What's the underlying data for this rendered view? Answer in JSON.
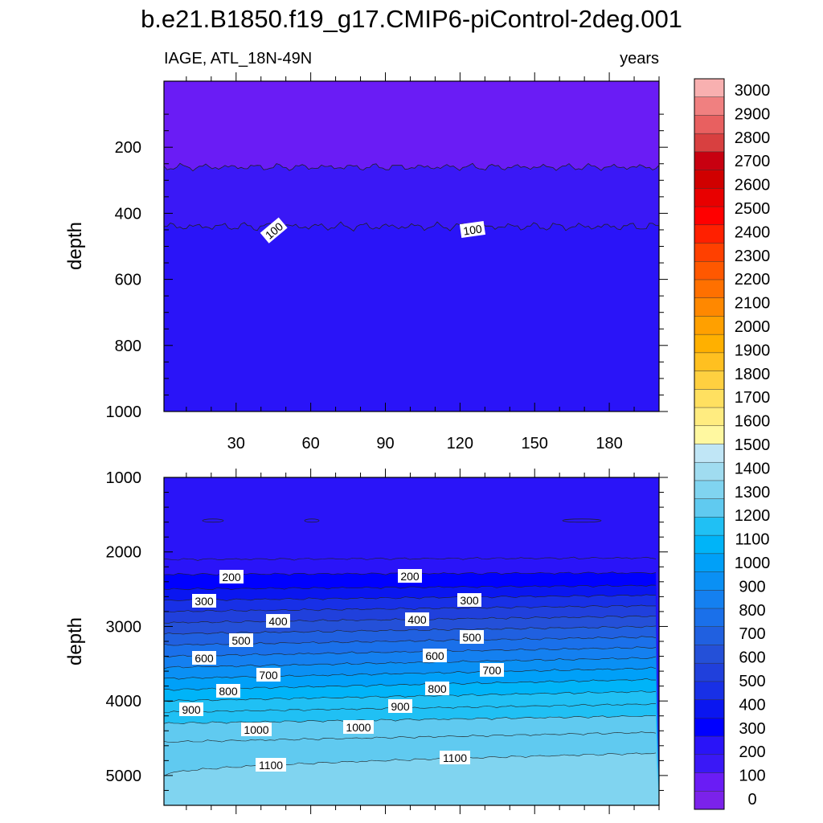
{
  "title": "b.e21.B1850.f19_g17.CMIP6-piControl-2deg.001",
  "subtitle_left": "IAGE, ATL_18N-49N",
  "subtitle_right": "years",
  "colors": {
    "levels_0_1500": [
      "#7b22ea",
      "#6a1cf5",
      "#3a18f6",
      "#2a14f8",
      "#0000ff",
      "#0a16f0",
      "#1830e6",
      "#2040dc",
      "#2450d8",
      "#2060e0",
      "#1a70ea",
      "#1480f0",
      "#0a90f4",
      "#00a0f8",
      "#00b4f8",
      "#20c0f4",
      "#60caf0",
      "#80d4f0",
      "#a0dcf0",
      "#c0e6f6"
    ],
    "levels_1500_3000": [
      "#fff8a0",
      "#ffec80",
      "#ffe060",
      "#ffd040",
      "#ffc020",
      "#ffb000",
      "#ffa000",
      "#ff8800",
      "#ff7000",
      "#ff5800",
      "#ff4000",
      "#ff2000",
      "#ff0000",
      "#e80000",
      "#d00000",
      "#c80010",
      "#d84040",
      "#e86060",
      "#f08080",
      "#f8b0b0"
    ]
  },
  "chart_data": [
    {
      "type": "contour",
      "panel": "upper",
      "ylabel": "depth",
      "ylim": [
        0,
        1000
      ],
      "y_ticks": [
        "200",
        "400",
        "600",
        "800",
        "1000"
      ],
      "x_ticks": [
        "30",
        "60",
        "90",
        "120",
        "150",
        "180"
      ],
      "xlim": [
        1,
        200
      ],
      "contour_labels": [
        "100",
        "100"
      ],
      "contour_depths": [
        {
          "level": 50,
          "depth": 260
        },
        {
          "level": 100,
          "depth": 440
        }
      ]
    },
    {
      "type": "contour",
      "panel": "lower",
      "ylabel": "depth",
      "ylim": [
        1000,
        5400
      ],
      "y_ticks": [
        "1000",
        "2000",
        "3000",
        "4000",
        "5000"
      ],
      "xlim": [
        1,
        200
      ],
      "contour_labels": [
        "200",
        "200",
        "300",
        "300",
        "400",
        "400",
        "500",
        "500",
        "600",
        "600",
        "700",
        "700",
        "800",
        "800",
        "900",
        "900",
        "1000",
        "1000",
        "1100",
        "1100"
      ]
    },
    {
      "type": "colorbar",
      "labels": [
        "3000",
        "2900",
        "2800",
        "2700",
        "2600",
        "2500",
        "2400",
        "2300",
        "2200",
        "2100",
        "2000",
        "1900",
        "1800",
        "1700",
        "1600",
        "1500",
        "1400",
        "1300",
        "1200",
        "1100",
        "1000",
        "900",
        "800",
        "700",
        "600",
        "500",
        "400",
        "300",
        "200",
        "100",
        "0"
      ]
    }
  ]
}
